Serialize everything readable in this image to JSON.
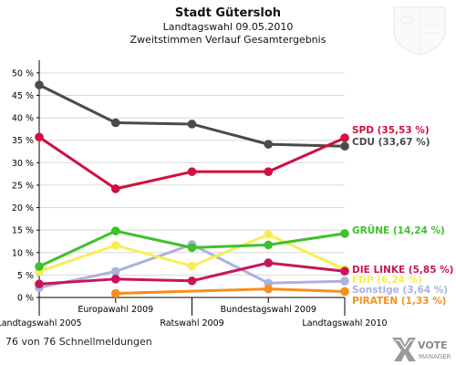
{
  "chart_data": {
    "type": "line",
    "title": "Stadt Gütersloh",
    "subtitle": "Landtagswahl 09.05.2010",
    "subtitle2": "Zweitstimmen Verlauf Gesamtergebnis",
    "categories": [
      "Landtagswahl 2005",
      "Europawahl 2009",
      "Ratswahl 2009",
      "Bundestagswahl 2009",
      "Landtagswahl 2010"
    ],
    "ylim": [
      0,
      52
    ],
    "yticks": [
      "0 %",
      "5 %",
      "10 %",
      "15 %",
      "20 %",
      "25 %",
      "30 %",
      "35 %",
      "40 %",
      "45 %",
      "50 %"
    ],
    "series": [
      {
        "name": "SPD",
        "label": "SPD (35,53 %)",
        "color": "#d10f3f",
        "values": [
          35.7,
          24.2,
          28.0,
          28.0,
          35.53
        ]
      },
      {
        "name": "CDU",
        "label": "CDU (33,67 %)",
        "color": "#4a4a4a",
        "values": [
          47.3,
          38.9,
          38.6,
          34.1,
          33.67
        ]
      },
      {
        "name": "GRÜNE",
        "label": "GRÜNE (14,24 %)",
        "color": "#3ec12b",
        "values": [
          6.9,
          14.8,
          11.1,
          11.7,
          14.24
        ]
      },
      {
        "name": "DIE LINKE",
        "label": "DIE LINKE (5,85 %)",
        "color": "#c8155a",
        "values": [
          3.0,
          4.1,
          3.7,
          7.7,
          5.85
        ]
      },
      {
        "name": "FDP",
        "label": "FDP (6,24 %)",
        "color": "#f7ee55",
        "values": [
          5.8,
          11.6,
          7.0,
          14.0,
          6.24
        ]
      },
      {
        "name": "Sonstige",
        "label": "Sonstige (3,64 %)",
        "color": "#aab2dd",
        "values": [
          2.2,
          5.8,
          11.8,
          3.2,
          3.64
        ]
      },
      {
        "name": "PIRATEN",
        "label": "PIRATEN (1,33 %)",
        "color": "#f5901e",
        "values": [
          null,
          0.9,
          null,
          1.9,
          1.33
        ]
      }
    ]
  },
  "footer": "76 von 76 Schnellmeldungen",
  "brand": {
    "top": "VOTE",
    "bottom": "MANAGER"
  }
}
